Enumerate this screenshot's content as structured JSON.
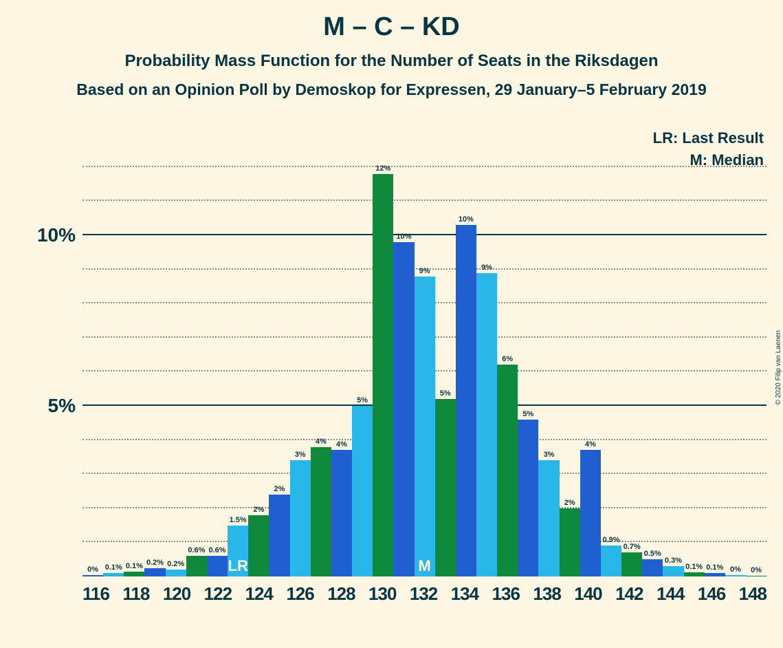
{
  "title": "M – C – KD",
  "subtitle": "Probability Mass Function for the Number of Seats in the Riksdagen",
  "subtitle2": "Based on an Opinion Poll by Demoskop for Expressen, 29 January–5 February 2019",
  "legend": {
    "lr": "LR: Last Result",
    "m": "M: Median"
  },
  "copyright": "© 2020 Filip van Laenen",
  "chart": {
    "type": "bar",
    "background_color": "#fdf6e3",
    "text_color": "#073642",
    "grid_color_solid": "#073642",
    "grid_color_dotted": "#888888",
    "yaxis": {
      "min": 0,
      "max": 12.5,
      "major_ticks": [
        5,
        10
      ],
      "minor_ticks": [
        1,
        2,
        3,
        4,
        6,
        7,
        8,
        9,
        11,
        12
      ],
      "labels": [
        "5%",
        "10%"
      ]
    },
    "xaxis": {
      "categories": [
        "116",
        "118",
        "120",
        "122",
        "124",
        "126",
        "128",
        "130",
        "132",
        "134",
        "136",
        "138",
        "140",
        "142",
        "144",
        "146",
        "148"
      ],
      "categories_all": [
        "116",
        "117",
        "118",
        "119",
        "120",
        "121",
        "122",
        "123",
        "124",
        "125",
        "126",
        "127",
        "128",
        "129",
        "130",
        "131",
        "132",
        "133",
        "134",
        "135",
        "136",
        "137",
        "138",
        "139",
        "140",
        "141",
        "142",
        "143",
        "144",
        "145",
        "146",
        "147",
        "148"
      ]
    },
    "colors": {
      "blue": "#1f5fcf",
      "cyan": "#29b6e8",
      "green": "#0f8a3c"
    },
    "bars": [
      {
        "x": "116",
        "color": "blue",
        "value": 0.05,
        "label": "0%"
      },
      {
        "x": "117",
        "color": "cyan",
        "value": 0.1,
        "label": "0.1%"
      },
      {
        "x": "118",
        "color": "green",
        "value": 0.15,
        "label": "0.1%"
      },
      {
        "x": "119",
        "color": "blue",
        "value": 0.25,
        "label": "0.2%"
      },
      {
        "x": "120",
        "color": "cyan",
        "value": 0.2,
        "label": "0.2%"
      },
      {
        "x": "121",
        "color": "green",
        "value": 0.6,
        "label": "0.6%"
      },
      {
        "x": "122",
        "color": "blue",
        "value": 0.6,
        "label": "0.6%"
      },
      {
        "x": "123",
        "color": "cyan",
        "value": 1.5,
        "label": "1.5%"
      },
      {
        "x": "124",
        "color": "green",
        "value": 1.8,
        "label": "2%"
      },
      {
        "x": "125",
        "color": "blue",
        "value": 2.4,
        "label": "2%"
      },
      {
        "x": "126",
        "color": "cyan",
        "value": 3.4,
        "label": "3%"
      },
      {
        "x": "127",
        "color": "green",
        "value": 3.8,
        "label": "4%"
      },
      {
        "x": "128",
        "color": "blue",
        "value": 3.7,
        "label": "4%"
      },
      {
        "x": "129",
        "color": "cyan",
        "value": 5.0,
        "label": "5%"
      },
      {
        "x": "130",
        "color": "green",
        "value": 11.8,
        "label": "12%"
      },
      {
        "x": "131",
        "color": "blue",
        "value": 9.8,
        "label": "10%"
      },
      {
        "x": "132",
        "color": "cyan",
        "value": 8.8,
        "label": "9%"
      },
      {
        "x": "133",
        "color": "green",
        "value": 5.2,
        "label": "5%"
      },
      {
        "x": "134",
        "color": "blue",
        "value": 10.3,
        "label": "10%"
      },
      {
        "x": "135",
        "color": "cyan",
        "value": 8.9,
        "label": "9%"
      },
      {
        "x": "136",
        "color": "green",
        "value": 6.2,
        "label": "6%"
      },
      {
        "x": "137",
        "color": "blue",
        "value": 4.6,
        "label": "5%"
      },
      {
        "x": "138",
        "color": "cyan",
        "value": 3.4,
        "label": "3%"
      },
      {
        "x": "139",
        "color": "green",
        "value": 2.0,
        "label": "2%"
      },
      {
        "x": "140",
        "color": "blue",
        "value": 3.7,
        "label": "4%"
      },
      {
        "x": "141",
        "color": "cyan",
        "value": 0.9,
        "label": "0.9%"
      },
      {
        "x": "142",
        "color": "green",
        "value": 0.7,
        "label": "0.7%"
      },
      {
        "x": "143",
        "color": "blue",
        "value": 0.5,
        "label": "0.5%"
      },
      {
        "x": "144",
        "color": "cyan",
        "value": 0.3,
        "label": "0.3%"
      },
      {
        "x": "145",
        "color": "green",
        "value": 0.12,
        "label": "0.1%"
      },
      {
        "x": "146",
        "color": "blue",
        "value": 0.1,
        "label": "0.1%"
      },
      {
        "x": "147",
        "color": "cyan",
        "value": 0.05,
        "label": "0%"
      },
      {
        "x": "148",
        "color": "green",
        "value": 0.03,
        "label": "0%"
      }
    ],
    "annotations": {
      "lr": {
        "text": "LR",
        "bar_index": 7,
        "color": "#fdf6e3"
      },
      "m": {
        "text": "M",
        "bar_index": 16,
        "color": "#fdf6e3"
      }
    }
  }
}
